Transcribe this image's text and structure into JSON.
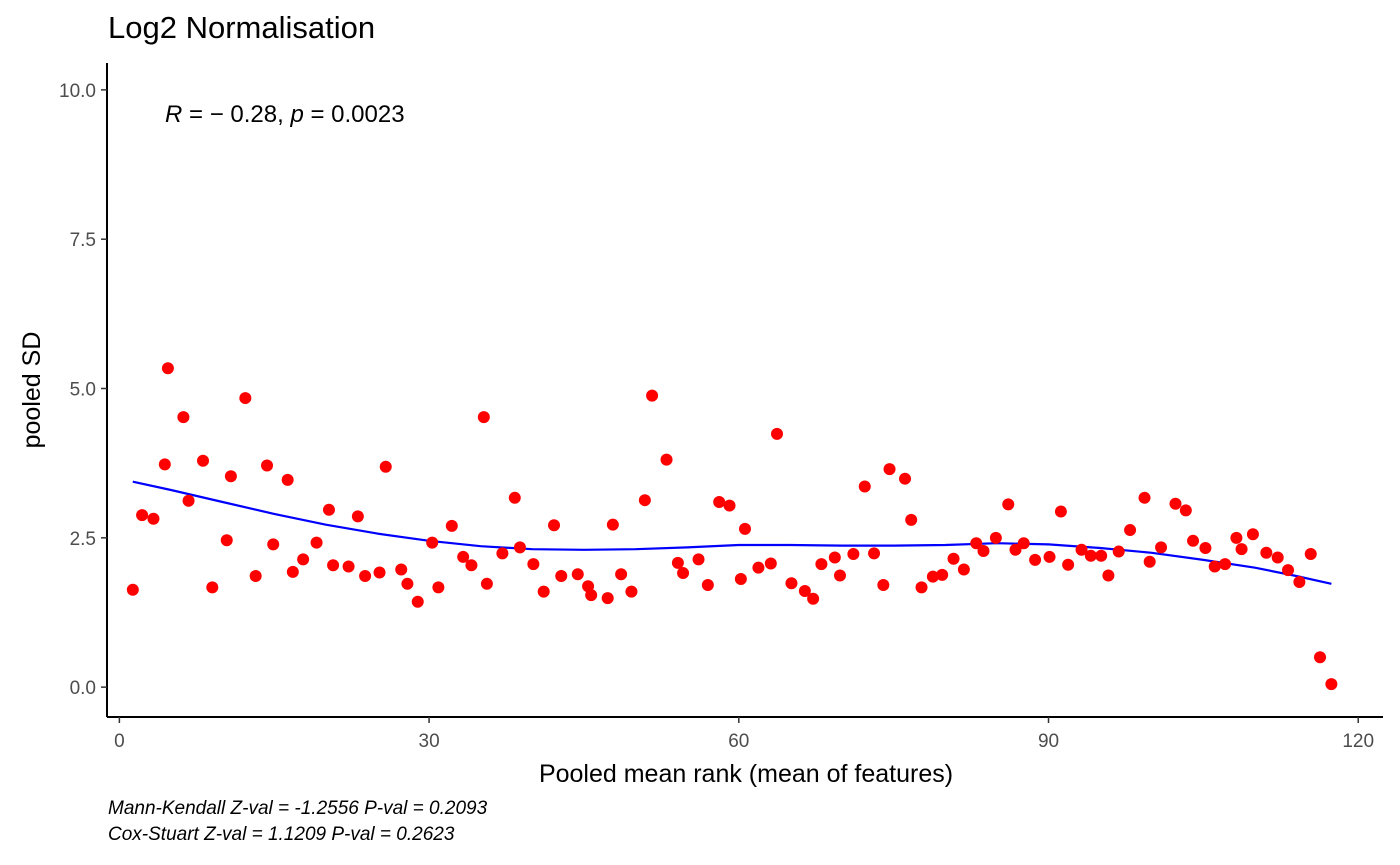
{
  "chart_data": {
    "type": "scatter",
    "title": "Log2 Normalisation",
    "xlabel": "Pooled mean rank (mean of features)",
    "ylabel": "pooled SD",
    "xlim": [
      -1.2,
      122.4
    ],
    "ylim": [
      -0.5,
      10.45
    ],
    "x_ticks": [
      0,
      30,
      60,
      90,
      120
    ],
    "y_ticks": [
      0.0,
      2.5,
      5.0,
      7.5,
      10.0
    ],
    "y_tick_labels": [
      "0.0",
      "2.5",
      "5.0",
      "7.5",
      "10.0"
    ],
    "grid": false,
    "point_color": "#ff0000",
    "line_color": "#0000ff",
    "correlation": {
      "r_symbol": "R",
      "r_value": " = − 0.28, ",
      "p_symbol": "p",
      "p_value": " = 0.0023"
    },
    "points": {
      "x": [
        1.3,
        2.2,
        3.3,
        4.4,
        4.7,
        6.2,
        6.7,
        8.1,
        9.0,
        10.4,
        10.8,
        12.2,
        13.2,
        14.3,
        14.9,
        16.3,
        16.8,
        17.8,
        19.1,
        20.3,
        20.7,
        22.2,
        23.1,
        23.8,
        25.2,
        25.8,
        27.3,
        27.9,
        28.9,
        30.3,
        30.9,
        32.2,
        33.3,
        34.1,
        35.3,
        35.6,
        37.1,
        38.3,
        38.8,
        40.1,
        41.1,
        42.1,
        42.8,
        44.4,
        45.4,
        45.7,
        47.3,
        47.8,
        48.6,
        49.6,
        50.9,
        51.6,
        53.0,
        54.1,
        54.6,
        56.1,
        57.0,
        58.1,
        59.1,
        60.2,
        60.6,
        61.9,
        63.1,
        63.7,
        65.1,
        66.4,
        67.2,
        68.0,
        69.3,
        69.8,
        71.1,
        72.2,
        73.1,
        74.0,
        74.6,
        76.1,
        76.7,
        77.7,
        78.8,
        79.7,
        80.8,
        81.8,
        83.0,
        83.7,
        84.9,
        86.1,
        86.8,
        87.6,
        88.7,
        90.1,
        91.2,
        91.9,
        93.2,
        94.1,
        95.1,
        95.8,
        96.8,
        97.9,
        99.3,
        99.8,
        100.9,
        102.3,
        103.3,
        104.0,
        105.2,
        106.1,
        107.1,
        108.2,
        108.7,
        109.8,
        111.1,
        112.2,
        113.2,
        114.3,
        115.4,
        116.3,
        117.4
      ],
      "y": [
        1.63,
        2.88,
        2.82,
        3.73,
        5.34,
        4.52,
        3.12,
        3.79,
        1.67,
        2.46,
        3.53,
        4.84,
        1.86,
        3.71,
        2.39,
        3.47,
        1.93,
        2.14,
        2.42,
        2.97,
        2.04,
        2.02,
        2.86,
        1.86,
        1.92,
        3.69,
        1.97,
        1.73,
        1.43,
        2.42,
        1.67,
        2.7,
        2.18,
        2.04,
        4.52,
        1.73,
        2.24,
        3.17,
        2.34,
        2.06,
        1.6,
        2.71,
        1.86,
        1.89,
        1.69,
        1.54,
        1.49,
        2.72,
        1.89,
        1.6,
        3.13,
        4.88,
        3.81,
        2.08,
        1.91,
        2.14,
        1.71,
        3.1,
        3.04,
        1.81,
        2.65,
        2.0,
        2.07,
        4.24,
        1.74,
        1.61,
        1.48,
        2.06,
        2.17,
        1.87,
        2.23,
        3.36,
        2.24,
        1.71,
        3.65,
        3.49,
        2.8,
        1.67,
        1.85,
        1.88,
        2.15,
        1.97,
        2.41,
        2.28,
        2.5,
        3.06,
        2.3,
        2.41,
        2.13,
        2.18,
        2.94,
        2.05,
        2.3,
        2.2,
        2.2,
        1.87,
        2.27,
        2.63,
        3.17,
        2.1,
        2.34,
        3.07,
        2.96,
        2.45,
        2.33,
        2.02,
        2.06,
        2.5,
        2.31,
        2.56,
        2.25,
        2.17,
        1.96,
        1.76,
        2.23,
        0.5,
        0.05
      ]
    },
    "smooth_line": {
      "x": [
        1.3,
        5,
        10,
        15,
        20,
        25,
        30,
        35,
        40,
        45,
        50,
        55,
        60,
        65,
        70,
        75,
        80,
        85,
        90,
        95,
        100,
        105,
        110,
        114,
        117.4
      ],
      "y": [
        3.44,
        3.3,
        3.1,
        2.9,
        2.72,
        2.57,
        2.45,
        2.36,
        2.31,
        2.3,
        2.31,
        2.34,
        2.38,
        2.38,
        2.37,
        2.37,
        2.38,
        2.41,
        2.39,
        2.33,
        2.25,
        2.13,
        2.0,
        1.86,
        1.73
      ]
    }
  },
  "caption": {
    "line1": "Mann-Kendall Z-val = -1.2556 P-val = 0.2093",
    "line2": "Cox-Stuart Z-val = 1.1209 P-val = 0.2623"
  }
}
